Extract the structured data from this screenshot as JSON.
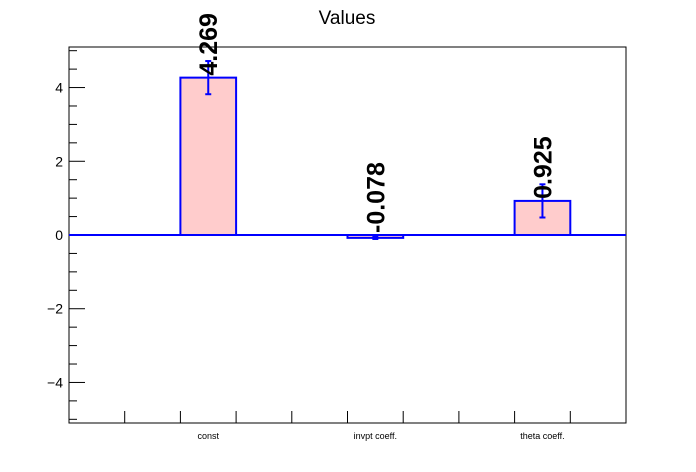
{
  "chart_data": {
    "type": "bar",
    "title": "Values",
    "xlabel": "",
    "ylabel": "",
    "categories": [
      "const",
      "invpt coeff.",
      "theta coeff."
    ],
    "values": [
      4.269,
      -0.078,
      0.925
    ],
    "errors": [
      0.45,
      0.03,
      0.45
    ],
    "data_labels": [
      "4.269",
      "-0.078",
      "0.925"
    ],
    "ylim": [
      -5.1,
      5.1
    ],
    "yticks": [
      -4,
      -2,
      0,
      2,
      4
    ],
    "ytick_labels": [
      "−4",
      "−2",
      "0",
      "2",
      "4"
    ],
    "grid": false,
    "legend": "none",
    "colors": {
      "bar_fill": "#ffcccc",
      "bar_edge": "#0000ff",
      "error": "#0000ff",
      "zero_line": "#0000ff",
      "axis": "#000000"
    }
  }
}
